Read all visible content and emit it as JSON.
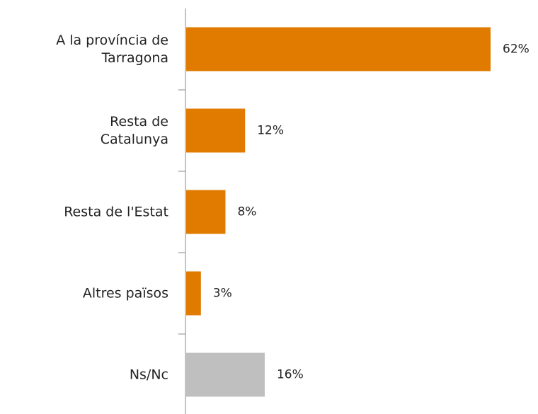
{
  "chart_data": {
    "type": "bar",
    "orientation": "horizontal",
    "categories": [
      "A la província de\nTarragona",
      "Resta de \nCatalunya",
      "Resta de l'Estat",
      "Altres països",
      "Ns/Nc"
    ],
    "values": [
      62,
      12,
      8,
      3,
      16
    ],
    "value_labels": [
      "62%",
      "12%",
      "8%",
      "3%",
      "16%"
    ],
    "colors": [
      "#e07b00",
      "#e07b00",
      "#e07b00",
      "#e07b00",
      "#bfbfbf"
    ]
  }
}
